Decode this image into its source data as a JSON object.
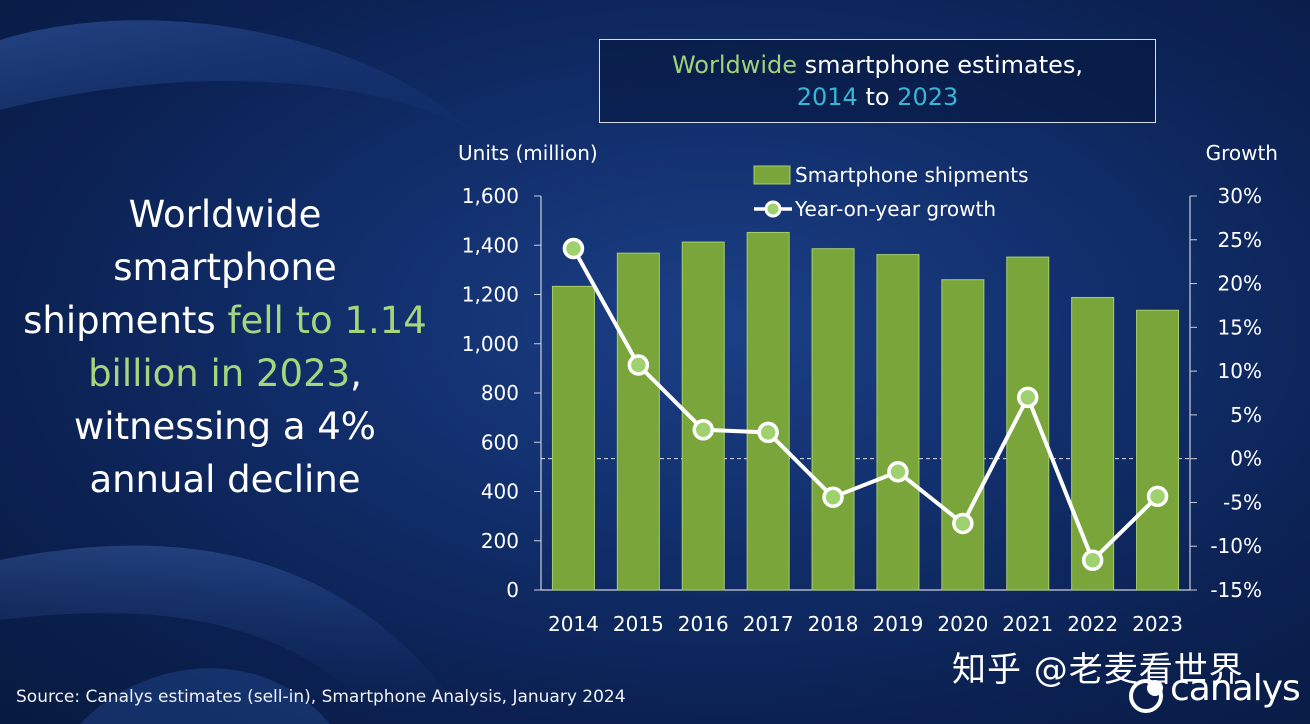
{
  "headline": {
    "part1": "Worldwide smartphone shipments ",
    "highlight": "fell to 1.14 billion in 2023",
    "part2": ", witnessing a 4% annual decline"
  },
  "title": {
    "line1_green": "Worldwide",
    "line1_rest": " smartphone estimates,",
    "line2_start": "2014",
    "line2_mid": " to ",
    "line2_end": "2023"
  },
  "source": "Source: Canalys estimates (sell-in), Smartphone Analysis, January 2024",
  "watermark": "知乎 @老麦看世界",
  "logo_text": "canalys",
  "colors": {
    "bar": "#79a53a",
    "bar_edge": "#a6cd6c",
    "line": "#ffffff",
    "marker_fill": "#9fd26f",
    "highlight_green": "#a5d67e",
    "title_cyan": "#38b6d8"
  },
  "chart_data": {
    "type": "bar",
    "categories": [
      "2014",
      "2015",
      "2016",
      "2017",
      "2018",
      "2019",
      "2020",
      "2021",
      "2022",
      "2023"
    ],
    "series": [
      {
        "name": "Smartphone shipments",
        "type": "bar",
        "axis": "left",
        "values": [
          1233,
          1368,
          1413,
          1452,
          1386,
          1362,
          1260,
          1352,
          1188,
          1136
        ]
      },
      {
        "name": "Year-on-year growth",
        "type": "line",
        "axis": "right",
        "values": [
          24,
          10.7,
          3.3,
          3,
          -4.4,
          -1.5,
          -7.4,
          7,
          -11.6,
          -4.3
        ]
      }
    ],
    "ylabel": "Units (million)",
    "y2label": "Growth",
    "ylim": [
      0,
      1600
    ],
    "yticks": [
      "0",
      "200",
      "400",
      "600",
      "800",
      "1,000",
      "1,200",
      "1,400",
      "1,600"
    ],
    "y2lim": [
      -15,
      30
    ],
    "y2ticks": [
      "-15%",
      "-10%",
      "-5%",
      "0%",
      "5%",
      "10%",
      "15%",
      "20%",
      "25%",
      "30%"
    ],
    "legend_position": "top-center",
    "grid": false
  }
}
